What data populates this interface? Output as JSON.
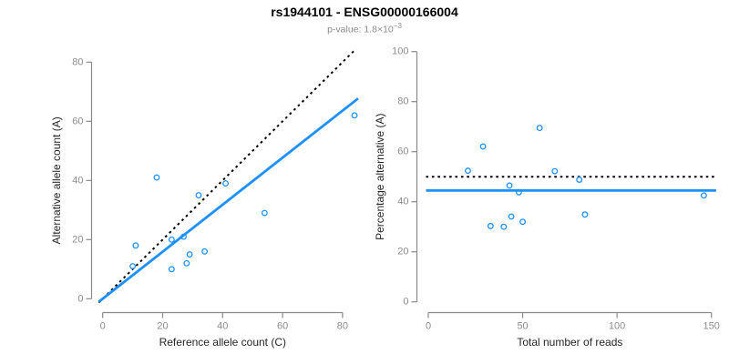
{
  "title": "rs1944101 - ENSG00000166004",
  "subtitle": {
    "label": "p-value: 1.8×10",
    "exponent": "−3"
  },
  "colors": {
    "accent_blue": "#1E90FF",
    "dotted_black": "#000000",
    "axis_line_gray": "#8a8a8a",
    "tick_label_gray": "#8c8c8c",
    "axis_title_color": "#262626",
    "title_color": "#000000",
    "subtitle_gray": "#8c8c8c"
  },
  "samples": {
    "ref_allele_counts": [
      10,
      11,
      18,
      23,
      23,
      27,
      28,
      29,
      32,
      34,
      41,
      54,
      84
    ],
    "alt_allele_counts": [
      11,
      18,
      41,
      10,
      20,
      21,
      12,
      15,
      35,
      16,
      39,
      29,
      62
    ]
  },
  "chart_data": [
    {
      "type": "scatter",
      "title": "",
      "xlabel": "Reference allele count (C)",
      "ylabel": "Alternative allele count (A)",
      "xlim": [
        0,
        85
      ],
      "ylim": [
        0,
        84
      ],
      "xticks": [
        0,
        20,
        40,
        60,
        80
      ],
      "yticks": [
        0,
        20,
        40,
        60,
        80
      ],
      "grid": false,
      "legend": "none",
      "x": [
        10,
        11,
        18,
        23,
        23,
        27,
        28,
        29,
        32,
        34,
        41,
        54,
        84
      ],
      "y": [
        11,
        18,
        41,
        10,
        20,
        21,
        12,
        15,
        35,
        16,
        39,
        29,
        62
      ],
      "lines": [
        {
          "name": "identity-line",
          "kind": "abline",
          "slope": 1,
          "intercept": 0,
          "style": "dotted",
          "color": "#000000"
        },
        {
          "name": "fit-line",
          "kind": "abline",
          "slope": 0.795,
          "intercept": 0,
          "style": "solid",
          "color": "#1E90FF"
        }
      ]
    },
    {
      "type": "scatter",
      "title": "",
      "xlabel": "Total number of reads",
      "ylabel": "Percentage alternative (A)",
      "xlim": [
        0,
        150
      ],
      "ylim": [
        0,
        100
      ],
      "xticks": [
        0,
        50,
        100,
        150
      ],
      "yticks": [
        0,
        20,
        40,
        60,
        80,
        100
      ],
      "grid": false,
      "legend": "none",
      "x": [
        21,
        29,
        59,
        33,
        43,
        48,
        40,
        44,
        67,
        50,
        80,
        83,
        146
      ],
      "y": [
        52.4,
        62.1,
        69.5,
        30.3,
        46.5,
        43.8,
        30.0,
        34.1,
        52.2,
        32.0,
        48.8,
        34.9,
        42.5
      ],
      "lines": [
        {
          "name": "expected-line",
          "kind": "hline",
          "y": 50,
          "style": "dotted",
          "color": "#000000"
        },
        {
          "name": "mean-line",
          "kind": "hline",
          "y": 44.5,
          "style": "solid",
          "color": "#1E90FF"
        }
      ]
    }
  ]
}
